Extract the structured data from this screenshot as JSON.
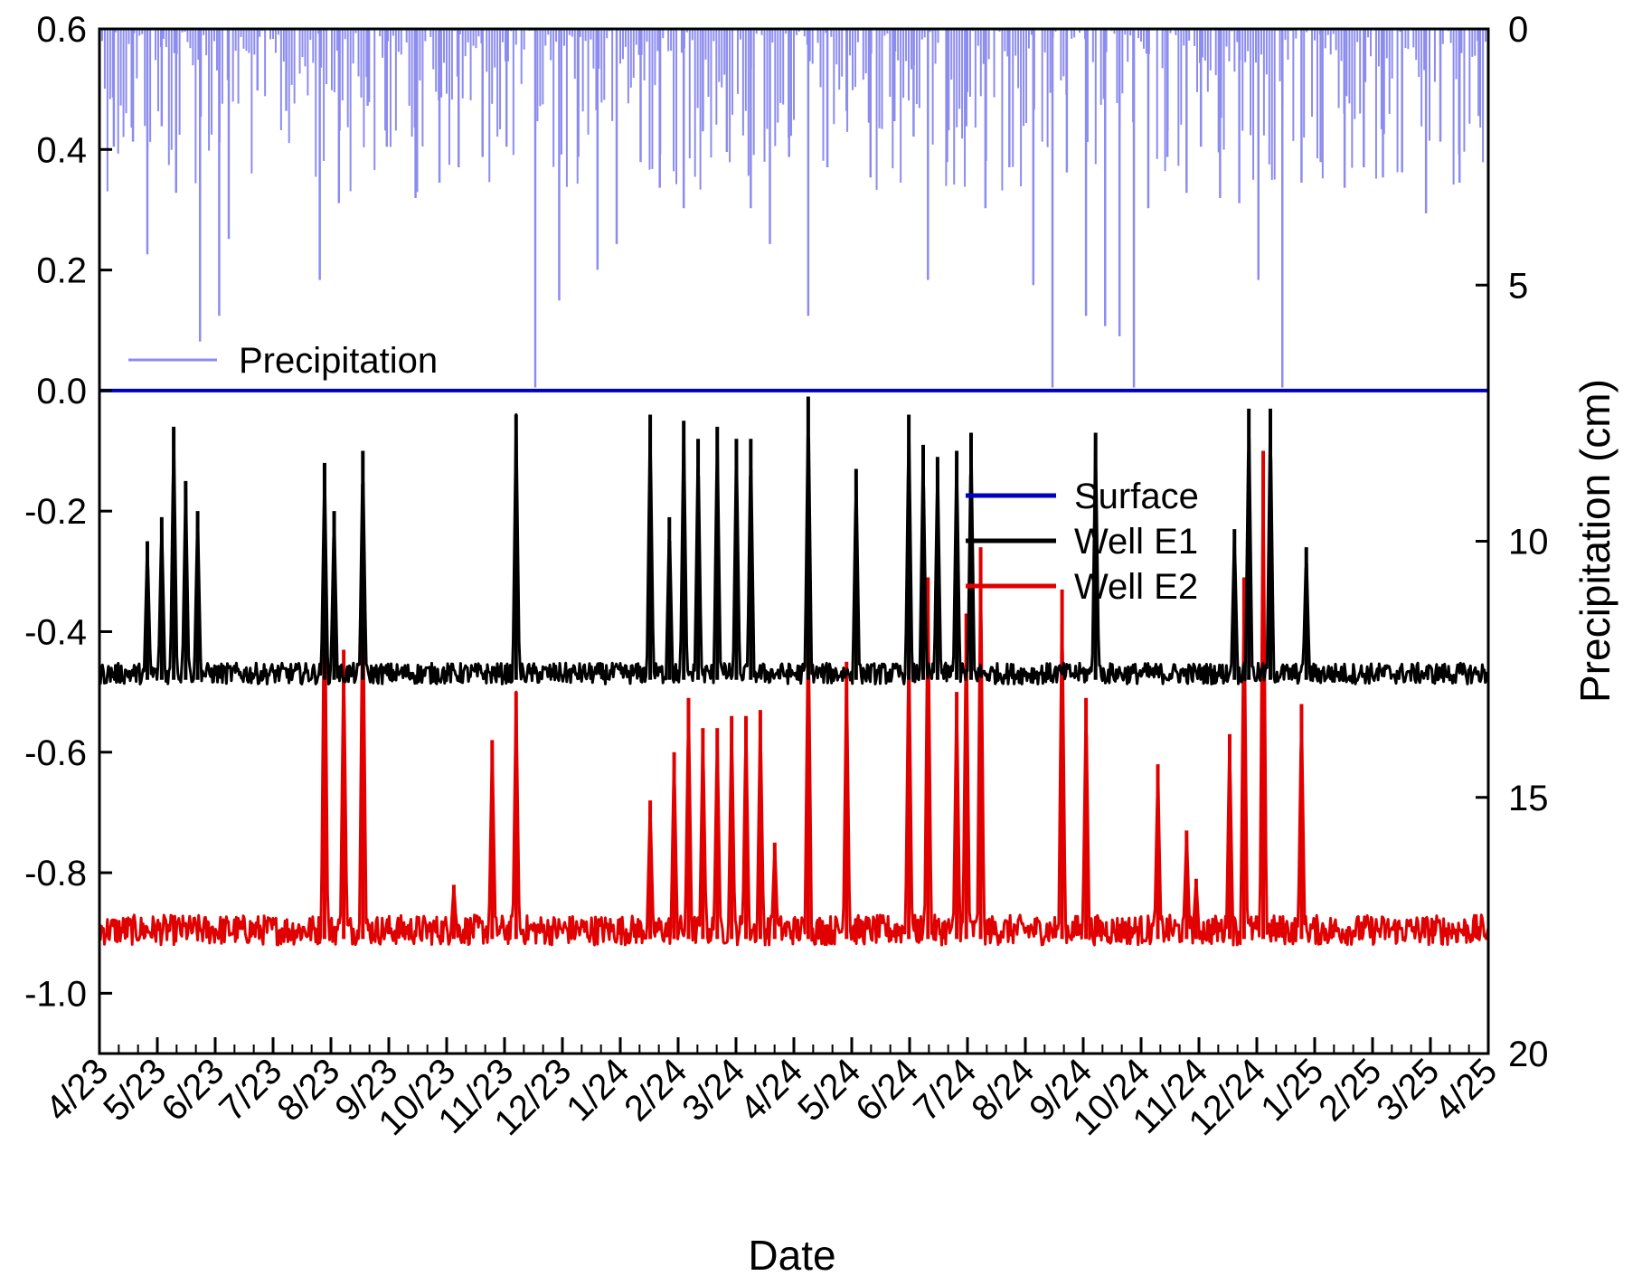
{
  "chart_data": {
    "type": "line",
    "xlabel": "Date",
    "ylabel_left": "",
    "ylabel_right": "Precipitation (cm)",
    "x_tick_labels": [
      "4/23",
      "5/23",
      "6/23",
      "7/23",
      "8/23",
      "9/23",
      "10/23",
      "11/23",
      "12/23",
      "1/24",
      "2/24",
      "3/24",
      "4/24",
      "5/24",
      "6/24",
      "7/24",
      "8/24",
      "9/24",
      "10/24",
      "11/24",
      "12/24",
      "1/25",
      "2/25",
      "3/25",
      "4/25"
    ],
    "left_axis": {
      "ylim": [
        -1.1,
        0.6
      ],
      "ticks": [
        0.6,
        0.4,
        0.2,
        0.0,
        -0.2,
        -0.4,
        -0.6,
        -0.8,
        -1.0
      ],
      "tick_labels": [
        "0.6",
        "0.4",
        "0.2",
        "0.0",
        "-0.2",
        "-0.4",
        "-0.6",
        "-0.8",
        "-1.0"
      ]
    },
    "right_axis": {
      "ylim": [
        20,
        0
      ],
      "inverted": true,
      "ticks": [
        0,
        5,
        10,
        15,
        20
      ],
      "tick_labels": [
        "0",
        "5",
        "10",
        "15",
        "20"
      ]
    },
    "colors": {
      "surface": "#0000c0",
      "well_e1": "#000000",
      "well_e2": "#e00000",
      "precipitation": "#8c8cf0",
      "axis": "#000000"
    },
    "legend_top_left": [
      "Precipitation"
    ],
    "legend_right": [
      "Surface",
      "Well E1",
      "Well E2"
    ],
    "series": [
      {
        "name": "Surface",
        "axis": "left",
        "constant": 0.0
      },
      {
        "name": "Well E1",
        "axis": "left",
        "baseline": -0.48,
        "events": [
          {
            "t": 1.0,
            "v": -0.25
          },
          {
            "t": 1.3,
            "v": -0.21
          },
          {
            "t": 1.55,
            "v": -0.06
          },
          {
            "t": 1.8,
            "v": -0.15
          },
          {
            "t": 2.05,
            "v": -0.2
          },
          {
            "t": 4.7,
            "v": -0.12
          },
          {
            "t": 4.9,
            "v": -0.2
          },
          {
            "t": 5.5,
            "v": -0.1
          },
          {
            "t": 8.7,
            "v": -0.04
          },
          {
            "t": 11.5,
            "v": -0.04
          },
          {
            "t": 11.9,
            "v": -0.21
          },
          {
            "t": 12.2,
            "v": -0.05
          },
          {
            "t": 12.5,
            "v": -0.08
          },
          {
            "t": 12.9,
            "v": -0.06
          },
          {
            "t": 13.3,
            "v": -0.08
          },
          {
            "t": 13.6,
            "v": -0.08
          },
          {
            "t": 14.8,
            "v": -0.01
          },
          {
            "t": 15.8,
            "v": -0.13
          },
          {
            "t": 16.9,
            "v": -0.04
          },
          {
            "t": 17.2,
            "v": -0.09
          },
          {
            "t": 17.5,
            "v": -0.11
          },
          {
            "t": 17.9,
            "v": -0.1
          },
          {
            "t": 18.2,
            "v": -0.07
          },
          {
            "t": 20.8,
            "v": -0.07
          },
          {
            "t": 23.7,
            "v": -0.23
          },
          {
            "t": 24.0,
            "v": -0.03
          },
          {
            "t": 24.45,
            "v": -0.03
          },
          {
            "t": 25.2,
            "v": -0.26
          }
        ]
      },
      {
        "name": "Well E2",
        "axis": "left",
        "baseline": -0.91,
        "events": [
          {
            "t": 4.7,
            "v": -0.25
          },
          {
            "t": 5.1,
            "v": -0.43
          },
          {
            "t": 5.5,
            "v": -0.29
          },
          {
            "t": 7.4,
            "v": -0.82
          },
          {
            "t": 8.2,
            "v": -0.58
          },
          {
            "t": 8.7,
            "v": -0.5
          },
          {
            "t": 11.5,
            "v": -0.68
          },
          {
            "t": 12.0,
            "v": -0.6
          },
          {
            "t": 12.3,
            "v": -0.51
          },
          {
            "t": 12.6,
            "v": -0.56
          },
          {
            "t": 12.9,
            "v": -0.56
          },
          {
            "t": 13.2,
            "v": -0.54
          },
          {
            "t": 13.5,
            "v": -0.54
          },
          {
            "t": 13.8,
            "v": -0.53
          },
          {
            "t": 14.1,
            "v": -0.75
          },
          {
            "t": 14.8,
            "v": -0.36
          },
          {
            "t": 15.6,
            "v": -0.45
          },
          {
            "t": 16.9,
            "v": -0.4
          },
          {
            "t": 17.3,
            "v": -0.31
          },
          {
            "t": 17.9,
            "v": -0.5
          },
          {
            "t": 18.1,
            "v": -0.37
          },
          {
            "t": 18.4,
            "v": -0.26
          },
          {
            "t": 20.1,
            "v": -0.33
          },
          {
            "t": 20.6,
            "v": -0.51
          },
          {
            "t": 22.1,
            "v": -0.62
          },
          {
            "t": 22.7,
            "v": -0.73
          },
          {
            "t": 22.9,
            "v": -0.81
          },
          {
            "t": 23.6,
            "v": -0.57
          },
          {
            "t": 23.9,
            "v": -0.31
          },
          {
            "t": 24.3,
            "v": -0.1
          },
          {
            "t": 25.1,
            "v": -0.52
          }
        ]
      },
      {
        "name": "Precipitation",
        "axis": "right",
        "peaks": [
          {
            "t": 0.3,
            "v": 2.3
          },
          {
            "t": 0.7,
            "v": 2.2
          },
          {
            "t": 1.0,
            "v": 4.4
          },
          {
            "t": 1.3,
            "v": 1.9
          },
          {
            "t": 1.6,
            "v": 3.2
          },
          {
            "t": 2.1,
            "v": 6.1
          },
          {
            "t": 2.5,
            "v": 5.6
          },
          {
            "t": 2.7,
            "v": 4.1
          },
          {
            "t": 3.3,
            "v": 1.2
          },
          {
            "t": 3.9,
            "v": 1.6
          },
          {
            "t": 4.6,
            "v": 4.9
          },
          {
            "t": 5.0,
            "v": 3.4
          },
          {
            "t": 5.6,
            "v": 1.5
          },
          {
            "t": 6.0,
            "v": 2.3
          },
          {
            "t": 6.6,
            "v": 3.3
          },
          {
            "t": 7.1,
            "v": 3.0
          },
          {
            "t": 7.5,
            "v": 2.7
          },
          {
            "t": 8.0,
            "v": 2.5
          },
          {
            "t": 8.5,
            "v": 2.3
          },
          {
            "t": 9.1,
            "v": 7.0
          },
          {
            "t": 9.6,
            "v": 5.3
          },
          {
            "t": 10.0,
            "v": 2.5
          },
          {
            "t": 10.4,
            "v": 4.7
          },
          {
            "t": 10.8,
            "v": 4.2
          },
          {
            "t": 11.3,
            "v": 2.6
          },
          {
            "t": 11.7,
            "v": 3.1
          },
          {
            "t": 12.2,
            "v": 3.5
          },
          {
            "t": 12.6,
            "v": 2.0
          },
          {
            "t": 13.1,
            "v": 2.4
          },
          {
            "t": 13.6,
            "v": 3.5
          },
          {
            "t": 14.0,
            "v": 4.2
          },
          {
            "t": 14.4,
            "v": 2.5
          },
          {
            "t": 14.8,
            "v": 5.6
          },
          {
            "t": 15.2,
            "v": 2.7
          },
          {
            "t": 15.6,
            "v": 1.6
          },
          {
            "t": 16.1,
            "v": 2.9
          },
          {
            "t": 16.6,
            "v": 1.8
          },
          {
            "t": 17.0,
            "v": 2.1
          },
          {
            "t": 17.3,
            "v": 4.9
          },
          {
            "t": 17.7,
            "v": 2.6
          },
          {
            "t": 18.1,
            "v": 1.9
          },
          {
            "t": 18.5,
            "v": 3.5
          },
          {
            "t": 19.0,
            "v": 2.7
          },
          {
            "t": 19.5,
            "v": 5.0
          },
          {
            "t": 19.9,
            "v": 7.0
          },
          {
            "t": 20.2,
            "v": 2.8
          },
          {
            "t": 20.6,
            "v": 5.6
          },
          {
            "t": 21.0,
            "v": 5.8
          },
          {
            "t": 21.3,
            "v": 6.0
          },
          {
            "t": 21.6,
            "v": 7.0
          },
          {
            "t": 21.9,
            "v": 3.5
          },
          {
            "t": 22.3,
            "v": 2.5
          },
          {
            "t": 22.7,
            "v": 3.2
          },
          {
            "t": 23.0,
            "v": 2.3
          },
          {
            "t": 23.4,
            "v": 3.3
          },
          {
            "t": 23.8,
            "v": 3.4
          },
          {
            "t": 24.2,
            "v": 4.9
          },
          {
            "t": 24.7,
            "v": 7.0
          },
          {
            "t": 25.1,
            "v": 3.0
          },
          {
            "t": 25.5,
            "v": 2.6
          },
          {
            "t": 26.0,
            "v": 3.1
          },
          {
            "t": 26.4,
            "v": 2.7
          },
          {
            "t": 26.8,
            "v": 2.9
          },
          {
            "t": 27.2,
            "v": 2.8
          },
          {
            "t": 27.7,
            "v": 3.6
          },
          {
            "t": 28.0,
            "v": 2.2
          },
          {
            "t": 28.4,
            "v": 3.0
          },
          {
            "t": 28.8,
            "v": 1.7
          }
        ]
      }
    ]
  }
}
